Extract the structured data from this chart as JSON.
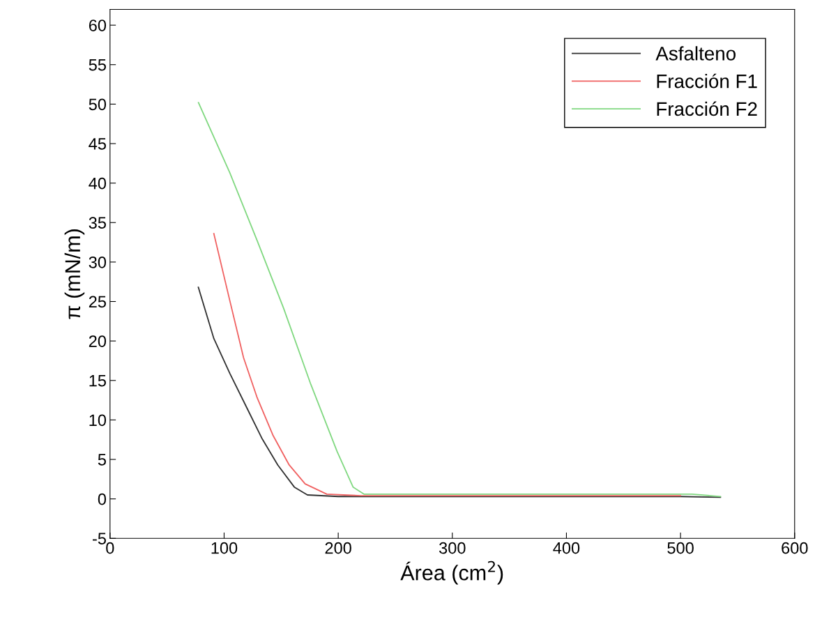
{
  "chart_data": {
    "type": "line",
    "xlabel": "Área (cm$^{2}$)",
    "ylabel": "π (mN/m)",
    "xlim": [
      0,
      600
    ],
    "xticks": [
      0,
      100,
      200,
      300,
      400,
      500,
      600
    ],
    "ylim": [
      -5,
      62
    ],
    "yticks": [
      -5,
      0,
      5,
      10,
      15,
      20,
      25,
      30,
      35,
      40,
      45,
      50,
      55,
      60
    ],
    "legend": "top right",
    "grid": false,
    "series": [
      {
        "name": "Asfalteno",
        "color": "#303030",
        "x": [
          77.4,
          91,
          105,
          119,
          133,
          147,
          161.5,
          173,
          200,
          300,
          400,
          500,
          535
        ],
        "values": [
          26.8,
          20.3,
          15.9,
          11.8,
          7.7,
          4.3,
          1.5,
          0.5,
          0.3,
          0.3,
          0.3,
          0.3,
          0.2
        ]
      },
      {
        "name": "Fracción F1",
        "color": "#f06060",
        "x": [
          91,
          105,
          117,
          129,
          143,
          157,
          171,
          190,
          220,
          300,
          400,
          500
        ],
        "values": [
          33.6,
          25.1,
          17.9,
          12.8,
          8,
          4.3,
          1.9,
          0.6,
          0.4,
          0.4,
          0.4,
          0.4
        ]
      },
      {
        "name": "Fracción F2",
        "color": "#80d880",
        "x": [
          77.5,
          105,
          129,
          152,
          176,
          199,
          213,
          222.5,
          300,
          400,
          510,
          535
        ],
        "values": [
          50.2,
          41.3,
          32.7,
          24.2,
          14.5,
          6,
          1.5,
          0.6,
          0.6,
          0.6,
          0.6,
          0.3
        ]
      }
    ]
  }
}
